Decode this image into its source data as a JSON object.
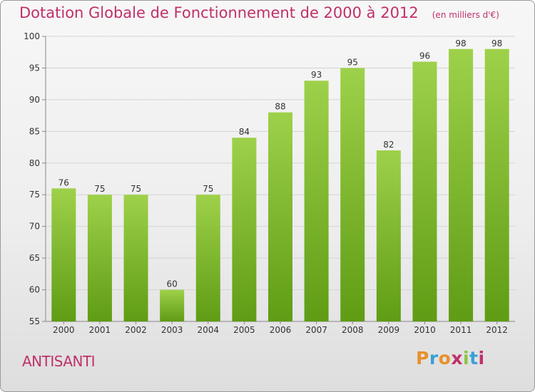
{
  "header": {
    "title": "Dotation Globale de Fonctionnement de 2000 à 2012",
    "subtitle": "(en milliers d'€)"
  },
  "footer": {
    "commune": "ANTISANTI",
    "logo_text": "Proxiti",
    "logo_colors": [
      "#e8902a",
      "#3aa0d8",
      "#e8902a",
      "#c0306a",
      "#8cc63f",
      "#3aa0d8",
      "#c0306a"
    ]
  },
  "colors": {
    "bar_light": "#9ed14a",
    "bar_dark": "#5f9c14",
    "accent": "#c0306a"
  },
  "chart_data": {
    "type": "bar",
    "categories": [
      "2000",
      "2001",
      "2002",
      "2003",
      "2004",
      "2005",
      "2006",
      "2007",
      "2008",
      "2009",
      "2010",
      "2011",
      "2012"
    ],
    "values": [
      76,
      75,
      75,
      60,
      75,
      84,
      88,
      93,
      95,
      82,
      96,
      98,
      98
    ],
    "title": "Dotation Globale de Fonctionnement de 2000 à 2012",
    "subtitle": "(en milliers d'€)",
    "xlabel": "",
    "ylabel": "",
    "ylim": [
      55,
      100
    ],
    "yticks": [
      55,
      60,
      65,
      70,
      75,
      80,
      85,
      90,
      95,
      100
    ],
    "grid": true,
    "legend": "none"
  }
}
